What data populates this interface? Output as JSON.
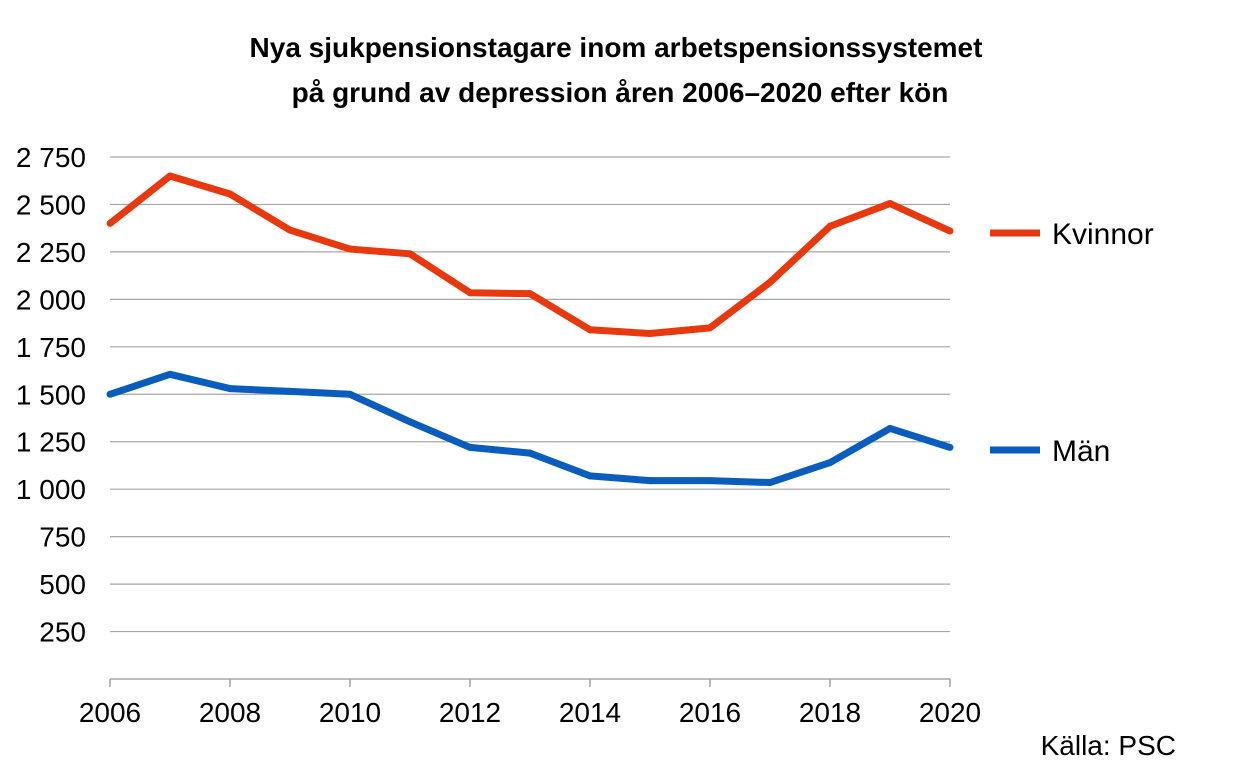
{
  "chart_data": {
    "type": "line",
    "title": "Nya sjukpensionstagare inom arbetspensionssystemet",
    "subtitle": "på grund av depression åren 2006–2020 efter kön",
    "x": [
      2006,
      2007,
      2008,
      2009,
      2010,
      2011,
      2012,
      2013,
      2014,
      2015,
      2016,
      2017,
      2018,
      2019,
      2020
    ],
    "x_tick_labels": [
      "2006",
      "2008",
      "2010",
      "2012",
      "2014",
      "2016",
      "2018",
      "2020"
    ],
    "y_tick_labels": [
      "250",
      "500",
      "750",
      "1 000",
      "1 250",
      "1 500",
      "1 750",
      "2 000",
      "2 250",
      "2 500",
      "2 750"
    ],
    "ylim": [
      0,
      2750
    ],
    "xlim": [
      2006,
      2020
    ],
    "grid": true,
    "legend_placement": "right",
    "series": [
      {
        "name": "Kvinnor",
        "color": "#e8380d",
        "values": [
          2400,
          2650,
          2555,
          2365,
          2265,
          2240,
          2035,
          2030,
          1840,
          1820,
          1850,
          2090,
          2385,
          2505,
          2360
        ]
      },
      {
        "name": "Män",
        "color": "#0a5cbd",
        "values": [
          1500,
          1605,
          1530,
          1515,
          1500,
          1355,
          1220,
          1190,
          1070,
          1045,
          1045,
          1035,
          1140,
          1320,
          1220
        ]
      }
    ],
    "source": "Källa: PSC"
  }
}
